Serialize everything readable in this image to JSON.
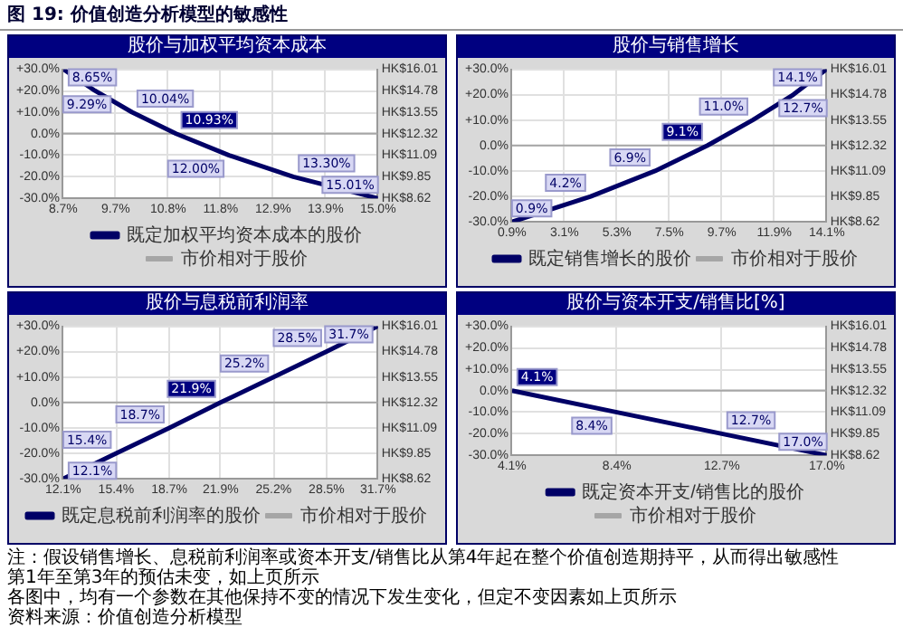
{
  "chart_data": [
    {
      "type": "other",
      "title": "图 19: 价值创造分析模型的敏感性"
    },
    {
      "type": "line",
      "title": "股价与加权平均资本成本",
      "series": [
        {
          "name": "既定加权平均资本成本的股价",
          "color": "#000066",
          "x": [
            8.65,
            9.29,
            10.04,
            10.93,
            12.0,
            13.3,
            15.01
          ],
          "values": [
            30,
            20,
            10,
            0,
            -10,
            -20,
            -30
          ]
        },
        {
          "name": "市价相对于股价",
          "color": "#a6a6a6",
          "x": [
            8.65,
            15.01
          ],
          "values": [
            0,
            0
          ]
        }
      ],
      "annotations": [
        {
          "text": "8.65%",
          "x": 8.65,
          "y": 30
        },
        {
          "text": "9.29%",
          "x": 9.29,
          "y": 20
        },
        {
          "text": "10.04%",
          "x": 10.04,
          "y": 10
        },
        {
          "text": "10.93%",
          "x": 10.93,
          "y": 0
        },
        {
          "text": "12.00%",
          "x": 12.0,
          "y": -10
        },
        {
          "text": "13.30%",
          "x": 13.3,
          "y": -20
        },
        {
          "text": "15.01%",
          "x": 15.01,
          "y": -30
        }
      ],
      "xlim": [
        8.65,
        15.01
      ],
      "xticks": [
        {
          "value": 8.65,
          "label": "8.7%"
        },
        {
          "value": 9.71,
          "label": "9.7%"
        },
        {
          "value": 10.77,
          "label": "10.8%"
        },
        {
          "value": 11.83,
          "label": "11.8%"
        },
        {
          "value": 12.89,
          "label": "12.9%"
        },
        {
          "value": 13.95,
          "label": "13.9%"
        },
        {
          "value": 15.01,
          "label": "15.0%"
        }
      ],
      "ylim": [
        -30,
        30
      ],
      "yticks": [
        {
          "value": -30,
          "label": "-30.0%"
        },
        {
          "value": -20,
          "label": "-20.0%"
        },
        {
          "value": -10,
          "label": "-10.0%"
        },
        {
          "value": 0,
          "label": "0.0%"
        },
        {
          "value": 10,
          "label": "+10.0%"
        },
        {
          "value": 20,
          "label": "+20.0%"
        },
        {
          "value": 30,
          "label": "+30.0%"
        }
      ],
      "y2_categories": [
        "HK$16.01",
        "HK$14.78",
        "HK$13.55",
        "HK$12.32",
        "HK$11.09",
        "HK$9.85",
        "HK$8.62"
      ],
      "grid": true,
      "legend": "bottom"
    },
    {
      "type": "line",
      "title": "股价与销售增长",
      "series": [
        {
          "name": "既定销售增长的股价",
          "color": "#000066",
          "x": [
            0.9,
            4.2,
            6.9,
            9.1,
            11.0,
            12.7,
            14.1
          ],
          "values": [
            -30,
            -20,
            -10,
            0,
            10,
            20,
            30
          ]
        },
        {
          "name": "市价相对于股价",
          "color": "#a6a6a6",
          "x": [
            0.9,
            14.1
          ],
          "values": [
            0,
            0
          ]
        }
      ],
      "annotations": [
        {
          "text": "0.9%",
          "x": 0.9,
          "y": -30
        },
        {
          "text": "4.2%",
          "x": 4.2,
          "y": -20
        },
        {
          "text": "6.9%",
          "x": 6.9,
          "y": -10
        },
        {
          "text": "9.1%",
          "x": 9.1,
          "y": 0
        },
        {
          "text": "11.0%",
          "x": 11.0,
          "y": 10
        },
        {
          "text": "12.7%",
          "x": 12.7,
          "y": 20
        },
        {
          "text": "14.1%",
          "x": 14.1,
          "y": 30
        }
      ],
      "xlim": [
        0.9,
        14.1
      ],
      "xticks": [
        {
          "value": 0.9,
          "label": "0.9%"
        },
        {
          "value": 3.1,
          "label": "3.1%"
        },
        {
          "value": 5.3,
          "label": "5.3%"
        },
        {
          "value": 7.5,
          "label": "7.5%"
        },
        {
          "value": 9.7,
          "label": "9.7%"
        },
        {
          "value": 11.9,
          "label": "11.9%"
        },
        {
          "value": 14.1,
          "label": "14.1%"
        }
      ],
      "ylim": [
        -30,
        30
      ],
      "yticks": [
        {
          "value": -30,
          "label": "-30.0%"
        },
        {
          "value": -20,
          "label": "-20.0%"
        },
        {
          "value": -10,
          "label": "-10.0%"
        },
        {
          "value": 0,
          "label": "0.0%"
        },
        {
          "value": 10,
          "label": "+10.0%"
        },
        {
          "value": 20,
          "label": "+20.0%"
        },
        {
          "value": 30,
          "label": "+30.0%"
        }
      ],
      "y2_categories": [
        "HK$16.01",
        "HK$14.78",
        "HK$13.55",
        "HK$12.32",
        "HK$11.09",
        "HK$9.85",
        "HK$8.62"
      ],
      "grid": true,
      "legend": "bottom"
    },
    {
      "type": "line",
      "title": "股价与息税前利润率",
      "series": [
        {
          "name": "既定息税前利润率的股价",
          "color": "#000066",
          "x": [
            12.1,
            15.4,
            18.7,
            21.9,
            25.2,
            28.5,
            31.7
          ],
          "values": [
            -30,
            -20,
            -10,
            0,
            10,
            20,
            30
          ]
        },
        {
          "name": "市价相对于股价",
          "color": "#a6a6a6",
          "x": [
            12.1,
            31.7
          ],
          "values": [
            0,
            0
          ]
        }
      ],
      "annotations": [
        {
          "text": "12.1%",
          "x": 12.1,
          "y": -30
        },
        {
          "text": "15.4%",
          "x": 15.4,
          "y": -20
        },
        {
          "text": "18.7%",
          "x": 18.7,
          "y": -10
        },
        {
          "text": "21.9%",
          "x": 21.9,
          "y": 0
        },
        {
          "text": "25.2%",
          "x": 25.2,
          "y": 10
        },
        {
          "text": "28.5%",
          "x": 28.5,
          "y": 20
        },
        {
          "text": "31.7%",
          "x": 31.7,
          "y": 30
        }
      ],
      "xlim": [
        12.1,
        31.7
      ],
      "xticks": [
        {
          "value": 12.1,
          "label": "12.1%"
        },
        {
          "value": 15.4,
          "label": "15.4%"
        },
        {
          "value": 18.7,
          "label": "18.7%"
        },
        {
          "value": 21.9,
          "label": "21.9%"
        },
        {
          "value": 25.2,
          "label": "25.2%"
        },
        {
          "value": 28.5,
          "label": "28.5%"
        },
        {
          "value": 31.7,
          "label": "31.7%"
        }
      ],
      "ylim": [
        -30,
        30
      ],
      "yticks": [
        {
          "value": -30,
          "label": "-30.0%"
        },
        {
          "value": -20,
          "label": "-20.0%"
        },
        {
          "value": -10,
          "label": "-10.0%"
        },
        {
          "value": 0,
          "label": "0.0%"
        },
        {
          "value": 10,
          "label": "+10.0%"
        },
        {
          "value": 20,
          "label": "+20.0%"
        },
        {
          "value": 30,
          "label": "+30.0%"
        }
      ],
      "y2_categories": [
        "HK$16.01",
        "HK$14.78",
        "HK$13.55",
        "HK$12.32",
        "HK$11.09",
        "HK$9.85",
        "HK$8.62"
      ],
      "grid": true,
      "legend": "bottom"
    },
    {
      "type": "line",
      "title": "股价与资本开支/销售比[%]",
      "series": [
        {
          "name": "既定资本开支/销售比的股价",
          "color": "#000066",
          "x": [
            4.1,
            8.4,
            12.7,
            17.0
          ],
          "values": [
            0,
            -10,
            -20,
            -30
          ]
        },
        {
          "name": "市价相对于股价",
          "color": "#a6a6a6",
          "x": [
            4.1,
            17.0
          ],
          "values": [
            0,
            0
          ]
        }
      ],
      "annotations": [
        {
          "text": "4.1%",
          "x": 4.1,
          "y": 0
        },
        {
          "text": "8.4%",
          "x": 8.4,
          "y": -10
        },
        {
          "text": "12.7%",
          "x": 12.7,
          "y": -20
        },
        {
          "text": "17.0%",
          "x": 17.0,
          "y": -30
        }
      ],
      "xlim": [
        4.1,
        17.0
      ],
      "xticks": [
        {
          "value": 4.1,
          "label": "4.1%"
        },
        {
          "value": 8.4,
          "label": "8.4%"
        },
        {
          "value": 12.7,
          "label": "12.7%"
        },
        {
          "value": 17.0,
          "label": "17.0%"
        }
      ],
      "ylim": [
        -30,
        30
      ],
      "yticks": [
        {
          "value": -30,
          "label": "-30.0%"
        },
        {
          "value": -20,
          "label": "-20.0%"
        },
        {
          "value": -10,
          "label": "-10.0%"
        },
        {
          "value": 0,
          "label": "0.0%"
        },
        {
          "value": 10,
          "label": "+10.0%"
        },
        {
          "value": 20,
          "label": "+20.0%"
        },
        {
          "value": 30,
          "label": "+30.0%"
        }
      ],
      "y2_categories": [
        "HK$16.01",
        "HK$14.78",
        "HK$13.55",
        "HK$12.32",
        "HK$11.09",
        "HK$9.85",
        "HK$8.62"
      ],
      "grid": true,
      "legend": "bottom"
    },
    {
      "type": "other",
      "annotations": [
        "注：假设销售增长、息税前利润率或资本开支/销售比从第4年起在整个价值创造期持平，从而得出敏感性",
        "第1年至第3年的预估未变，如上页所示",
        "各图中，均有一个参数在其他保持不变的情况下发生变化，但定不变因素如上页所示",
        "资料来源：价值创造分析模型"
      ]
    }
  ]
}
